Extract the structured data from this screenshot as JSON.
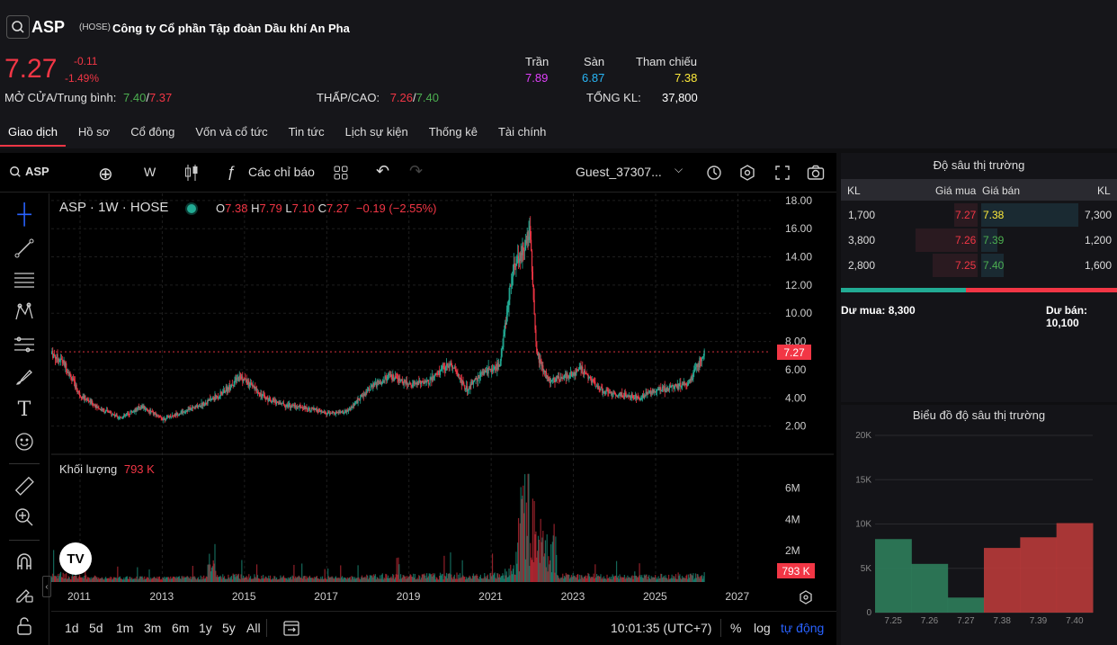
{
  "header": {
    "ticker": "ASP",
    "exchange": "(HOSE)",
    "company": "Công ty Cổ phần Tập đoàn Dầu khí An Pha",
    "price": "7.27",
    "change": "-0.11",
    "change_pct": "-1.49%",
    "open_avg_label": "MỞ CỬA/Trung bình:",
    "open": "7.40",
    "avg": "7.37",
    "low_high_label": "THẤP/CAO:",
    "low": "7.26",
    "high": "7.40",
    "ceiling_label": "Trần",
    "ceiling": "7.89",
    "floor_label": "Sàn",
    "floor": "6.87",
    "ref_label": "Tham chiếu",
    "ref": "7.38",
    "volume_label": "TỔNG KL:",
    "volume": "37,800",
    "sep": "/"
  },
  "tabs": [
    {
      "label": "Giao dịch"
    },
    {
      "label": "Hồ sơ"
    },
    {
      "label": "Cổ đông"
    },
    {
      "label": "Vốn và cổ tức"
    },
    {
      "label": "Tin tức"
    },
    {
      "label": "Lịch sự kiện"
    },
    {
      "label": "Thống kê"
    },
    {
      "label": "Tài chính"
    }
  ],
  "toolbar": {
    "symbol": "ASP",
    "interval": "W",
    "indicators": "Các chỉ báo",
    "user": "Guest_37307..."
  },
  "legend": {
    "title": "ASP · 1W · HOSE",
    "o_label": "O",
    "o": "7.38",
    "h_label": "H",
    "h": "7.79",
    "l_label": "L",
    "l": "7.10",
    "c_label": "C",
    "c": "7.27",
    "chg": "−0.19 (−2.55%)",
    "vol_label": "Khối lượng",
    "vol": "793 K",
    "last_price_tag": "7.27",
    "last_vol_tag": "793 K"
  },
  "bottombar": {
    "ranges": [
      "1d",
      "5d",
      "1m",
      "3m",
      "6m",
      "1y",
      "5y",
      "All"
    ],
    "time": "10:01:35 (UTC+7)",
    "pct": "%",
    "log": "log",
    "auto": "tự động"
  },
  "orderbook": {
    "title": "Độ sâu thị trường",
    "h_kl1": "KL",
    "h_bid": "Giá mua",
    "h_ask": "Giá bán",
    "h_kl2": "KL",
    "rows": [
      {
        "bid_vol": "1,700",
        "bid": "7.27",
        "ask": "7.38",
        "ask_vol": "7,300"
      },
      {
        "bid_vol": "3,800",
        "bid": "7.26",
        "ask": "7.39",
        "ask_vol": "1,200"
      },
      {
        "bid_vol": "2,800",
        "bid": "7.25",
        "ask": "7.40",
        "ask_vol": "1,600"
      }
    ],
    "buy_total": "Dư mua: 8,300",
    "sell_total": "Dư bán: 10,100"
  },
  "colors": {
    "up": "#22ab94",
    "down": "#f23645",
    "ceiling": "#e040fb",
    "floor": "#29b6f6",
    "ref": "#ffeb3b"
  },
  "chart_data": [
    {
      "type": "line",
      "title": "ASP · 1W · HOSE",
      "x_ticks": [
        "2011",
        "2013",
        "2015",
        "2017",
        "2019",
        "2021",
        "2023",
        "2025",
        "2027"
      ],
      "y_ticks": [
        "2.00",
        "4.00",
        "6.00",
        "8.00",
        "10.00",
        "12.00",
        "14.00",
        "16.00",
        "18.00"
      ],
      "ylim": [
        0,
        18.5
      ],
      "series": [
        {
          "x": [
            2010.3,
            2010.6,
            2011,
            2011.5,
            2012,
            2012.5,
            2013,
            2013.5,
            2014,
            2014.4,
            2014.9,
            2015.5,
            2016,
            2016.5,
            2017,
            2017.5,
            2018,
            2018.5,
            2019,
            2019.5,
            2020,
            2020.4,
            2020.8,
            2021.2,
            2021.5,
            2021.8,
            2021.95,
            2022.1,
            2022.4,
            2022.8,
            2023.2,
            2023.7,
            2024.2,
            2024.6,
            2025,
            2025.4,
            2025.8,
            2026.2
          ],
          "values": [
            7.2,
            6.5,
            4.2,
            3.2,
            2.6,
            3.4,
            2.5,
            3.0,
            3.6,
            4.2,
            5.5,
            4.0,
            3.5,
            3.3,
            2.9,
            3.0,
            4.6,
            5.5,
            5.0,
            5.2,
            6.5,
            4.6,
            5.8,
            6.3,
            12.5,
            14.8,
            15.9,
            7.2,
            5.2,
            5.5,
            6.0,
            4.5,
            4.2,
            4.0,
            4.6,
            4.7,
            5.1,
            7.27
          ]
        }
      ]
    },
    {
      "type": "bar",
      "title": "Khối lượng",
      "y_ticks": [
        "2M",
        "4M",
        "6M"
      ],
      "ylim": [
        0,
        7000000
      ]
    },
    {
      "type": "bar",
      "title": "Biểu đồ độ sâu thị trường",
      "categories": [
        "7.25",
        "7.26",
        "7.27",
        "7.38",
        "7.39",
        "7.40"
      ],
      "values": [
        8300,
        5500,
        1700,
        7300,
        8500,
        10100
      ],
      "y_ticks": [
        "0",
        "5K",
        "10K",
        "15K",
        "20K"
      ],
      "ylim": [
        0,
        20000
      ]
    }
  ]
}
